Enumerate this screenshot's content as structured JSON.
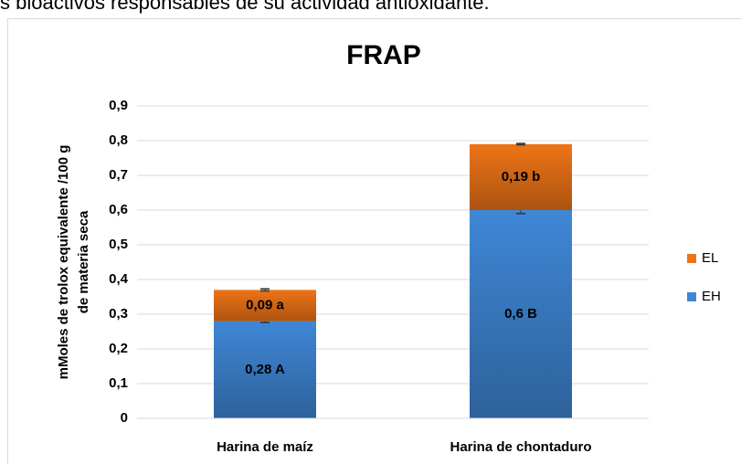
{
  "header_text": "s bioactivos responsables de su actividad antioxidante.",
  "chart_data": {
    "type": "stacked_bar",
    "title": "FRAP",
    "ylabel": [
      "mMoles de trolox equivalente /100 g",
      "de materia seca"
    ],
    "categories": [
      "Harina de maíz",
      "Harina de chontaduro"
    ],
    "series": [
      {
        "name": "EH",
        "color": "#3f87d6",
        "values": [
          0.28,
          0.6
        ],
        "value_labels": [
          "0,28 A",
          "0,6 B"
        ],
        "errors": [
          0.004,
          0.01
        ]
      },
      {
        "name": "EL",
        "color": "#ee7417",
        "values": [
          0.09,
          0.19
        ],
        "value_labels": [
          "0,09 a",
          "0,19 b"
        ],
        "errors": [
          0.003,
          0.002
        ]
      }
    ],
    "ylim": [
      0,
      0.9
    ],
    "yticks": [
      0,
      {
        "value": 0.1,
        "label": "0,1"
      },
      {
        "value": 0.2,
        "label": "0,2"
      },
      {
        "value": 0.3,
        "label": "0,3"
      },
      {
        "value": 0.4,
        "label": "0,4"
      },
      {
        "value": 0.5,
        "label": "0,5"
      },
      {
        "value": 0.6,
        "label": "0,6"
      },
      {
        "value": 0.7,
        "label": "0,7"
      },
      {
        "value": 0.8,
        "label": "0,8"
      },
      {
        "value": 0.9,
        "label": "0,9"
      }
    ],
    "grid": true,
    "legend": "right"
  }
}
